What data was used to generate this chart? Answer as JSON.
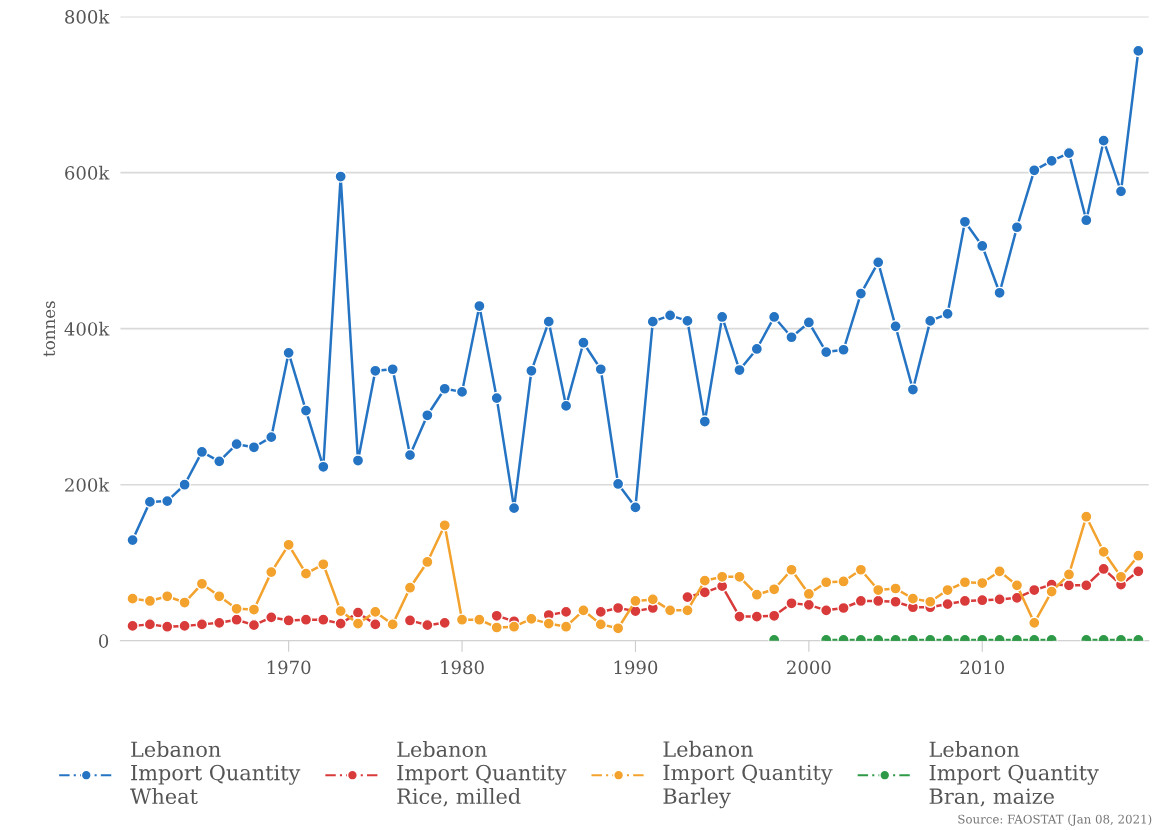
{
  "chart_data": {
    "type": "line",
    "ylabel": "tonnes",
    "x": [
      1961,
      1962,
      1963,
      1964,
      1965,
      1966,
      1967,
      1968,
      1969,
      1970,
      1971,
      1972,
      1973,
      1974,
      1975,
      1976,
      1977,
      1978,
      1979,
      1980,
      1981,
      1982,
      1983,
      1984,
      1985,
      1986,
      1987,
      1988,
      1989,
      1990,
      1991,
      1992,
      1993,
      1994,
      1995,
      1996,
      1997,
      1998,
      1999,
      2000,
      2001,
      2002,
      2003,
      2004,
      2005,
      2006,
      2007,
      2008,
      2009,
      2010,
      2011,
      2012,
      2013,
      2014,
      2015,
      2016,
      2017,
      2018,
      2019
    ],
    "series": [
      {
        "name": "Lebanon\nImport Quantity\nWheat",
        "color": "#2574c4",
        "values": [
          129000,
          178000,
          179000,
          200000,
          242000,
          230000,
          252000,
          248000,
          261000,
          369000,
          295000,
          223000,
          595000,
          231000,
          346000,
          348000,
          238000,
          289000,
          323000,
          319000,
          429000,
          311000,
          170000,
          346000,
          409000,
          301000,
          382000,
          348000,
          201000,
          171000,
          409000,
          417000,
          410000,
          281000,
          415000,
          347000,
          374000,
          415000,
          389000,
          408000,
          370000,
          373000,
          445000,
          485000,
          403000,
          322000,
          410000,
          419000,
          537000,
          506000,
          446000,
          530000,
          603000,
          615000,
          625000,
          539000,
          641000,
          576000,
          756000
        ]
      },
      {
        "name": "Lebanon\nImport Quantity\nRice, milled",
        "color": "#d93a3a",
        "values": [
          19000,
          21000,
          18000,
          19000,
          21000,
          23000,
          27000,
          20000,
          30000,
          26000,
          27000,
          27000,
          22000,
          36000,
          21000,
          null,
          26000,
          20000,
          23000,
          null,
          null,
          32000,
          25000,
          null,
          33000,
          37000,
          null,
          37000,
          42000,
          38000,
          42000,
          null,
          56000,
          62000,
          70000,
          31000,
          31000,
          32000,
          48000,
          46000,
          39000,
          42000,
          51000,
          51000,
          50000,
          43000,
          43000,
          47000,
          51000,
          52000,
          53000,
          55000,
          65000,
          72000,
          71000,
          71000,
          92000,
          72000,
          89000
        ]
      },
      {
        "name": "Lebanon\nImport Quantity\nBarley",
        "color": "#f2a22d",
        "values": [
          54000,
          51000,
          57000,
          49000,
          73000,
          57000,
          41000,
          40000,
          88000,
          123000,
          86000,
          98000,
          38000,
          22000,
          37000,
          21000,
          68000,
          101000,
          148000,
          27000,
          27000,
          17000,
          18000,
          28000,
          22000,
          18000,
          39000,
          21000,
          16000,
          51000,
          53000,
          39000,
          39000,
          77000,
          82000,
          82000,
          59000,
          66000,
          91000,
          60000,
          75000,
          76000,
          91000,
          65000,
          67000,
          54000,
          50000,
          65000,
          75000,
          74000,
          89000,
          71000,
          23000,
          63000,
          85000,
          159000,
          114000,
          82000,
          109000
        ]
      },
      {
        "name": "Lebanon\nImport Quantity\nBran, maize",
        "color": "#2e9a47",
        "values": [
          null,
          null,
          null,
          null,
          null,
          null,
          null,
          null,
          null,
          null,
          null,
          null,
          null,
          null,
          null,
          null,
          null,
          null,
          null,
          null,
          null,
          null,
          null,
          null,
          null,
          null,
          null,
          null,
          null,
          null,
          null,
          null,
          null,
          null,
          null,
          null,
          null,
          1000,
          null,
          null,
          1000,
          1000,
          1000,
          1000,
          1000,
          1000,
          1000,
          1000,
          1000,
          1000,
          1000,
          1000,
          1000,
          1000,
          null,
          1000,
          1000,
          1000,
          1000
        ]
      }
    ],
    "xlim": [
      1960.3,
      2019.6
    ],
    "xticks": [
      1970,
      1980,
      1990,
      2000,
      2010
    ],
    "ylim": [
      0,
      800000
    ],
    "yticks": [
      {
        "value": 0,
        "label": "0"
      },
      {
        "value": 200000,
        "label": "200k"
      },
      {
        "value": 400000,
        "label": "400k"
      },
      {
        "value": 600000,
        "label": "600k"
      },
      {
        "value": 800000,
        "label": "800k"
      }
    ],
    "grid": "y",
    "legend": "bottom",
    "marker": "circle",
    "line_style": "solid",
    "annotations": [
      "Source: FAOSTAT (Jan 08, 2021)"
    ]
  }
}
